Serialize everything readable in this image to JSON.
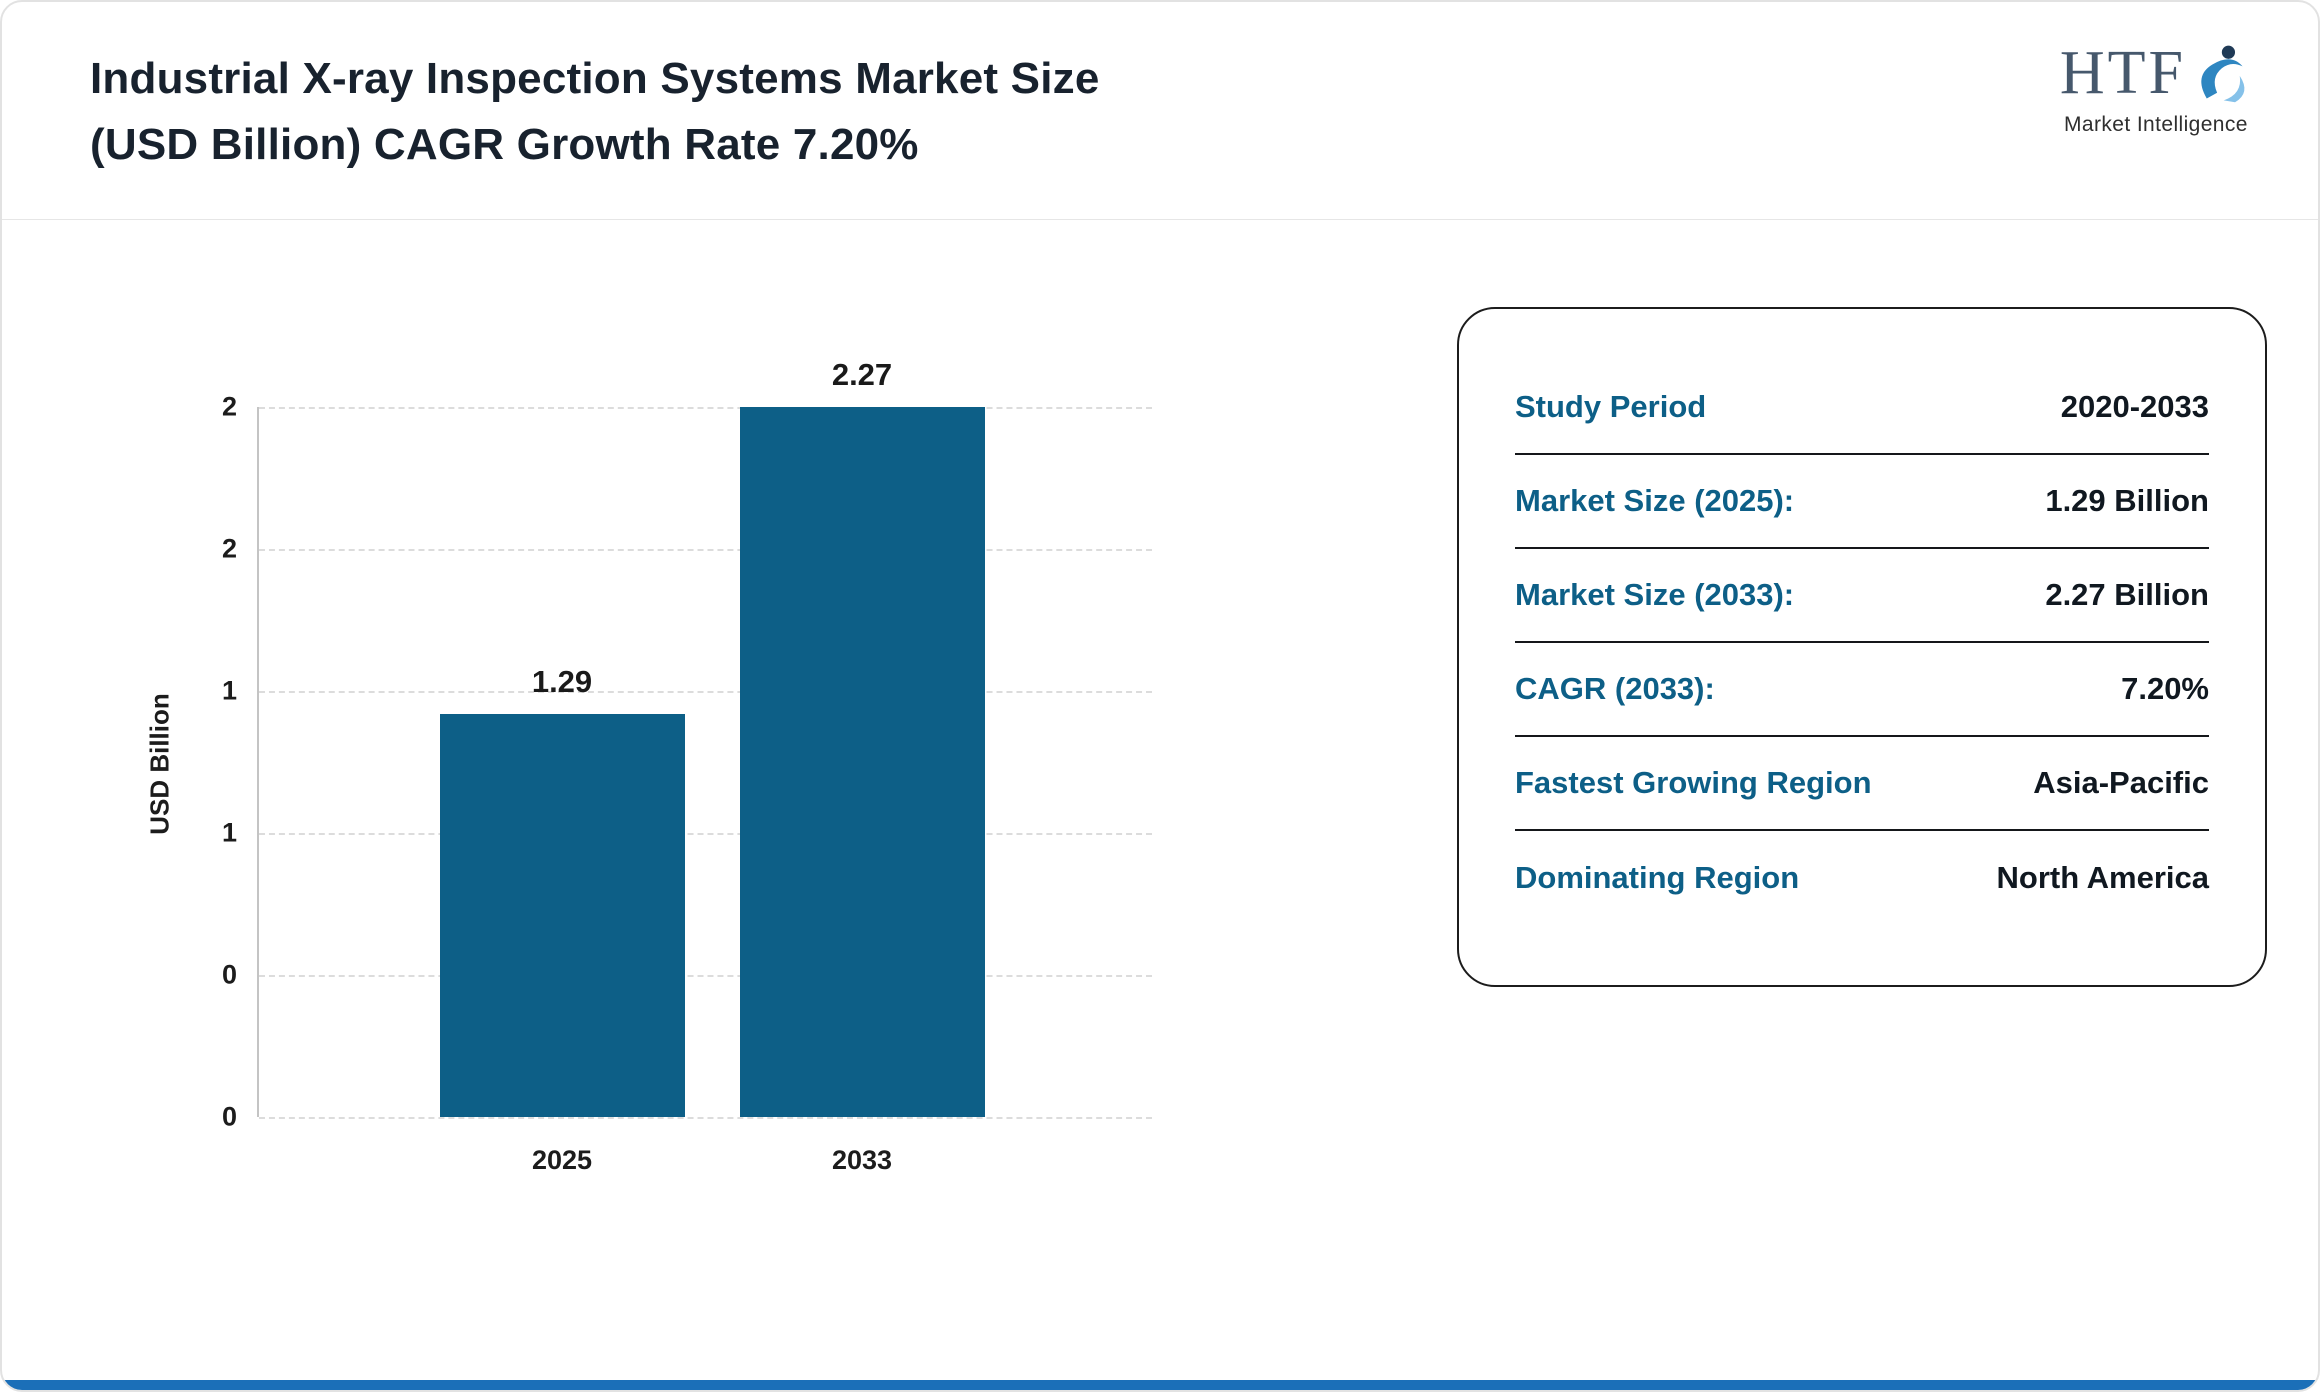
{
  "header": {
    "title_line1": "Industrial X-ray Inspection Systems Market Size",
    "title_line2": "(USD Billion) CAGR Growth Rate 7.20%",
    "logo": {
      "text": "HTF",
      "subtext": "Market Intelligence"
    }
  },
  "chart_data": {
    "type": "bar",
    "title": "Industrial X-ray Inspection Systems Market Size (USD Billion) CAGR Growth Rate 7.20%",
    "categories": [
      "2025",
      "2033"
    ],
    "values": [
      1.29,
      2.27
    ],
    "value_labels": [
      "1.29",
      "2.27"
    ],
    "ylabel": "USD Billion",
    "xlabel": "",
    "ylim": [
      0,
      2.27
    ],
    "ytick_labels_bottom_to_top": [
      "0",
      "0",
      "1",
      "1",
      "2",
      "2"
    ],
    "grid": "horizontal-dashed",
    "legend": "none",
    "bar_color": "#0d5f87"
  },
  "info_card": {
    "rows": [
      {
        "label": "Study Period",
        "value": "2020-2033"
      },
      {
        "label": "Market Size (2025):",
        "value": "1.29 Billion"
      },
      {
        "label": "Market Size (2033):",
        "value": "2.27 Billion"
      },
      {
        "label": "CAGR (2033):",
        "value": "7.20%"
      },
      {
        "label": "Fastest Growing Region",
        "value": "Asia-Pacific"
      },
      {
        "label": "Dominating Region",
        "value": "North America"
      }
    ],
    "label_color": "#0d5f87",
    "value_color": "#101820"
  },
  "theme": {
    "title_color": "#18222e",
    "accent_color": "#1b6fb8"
  }
}
